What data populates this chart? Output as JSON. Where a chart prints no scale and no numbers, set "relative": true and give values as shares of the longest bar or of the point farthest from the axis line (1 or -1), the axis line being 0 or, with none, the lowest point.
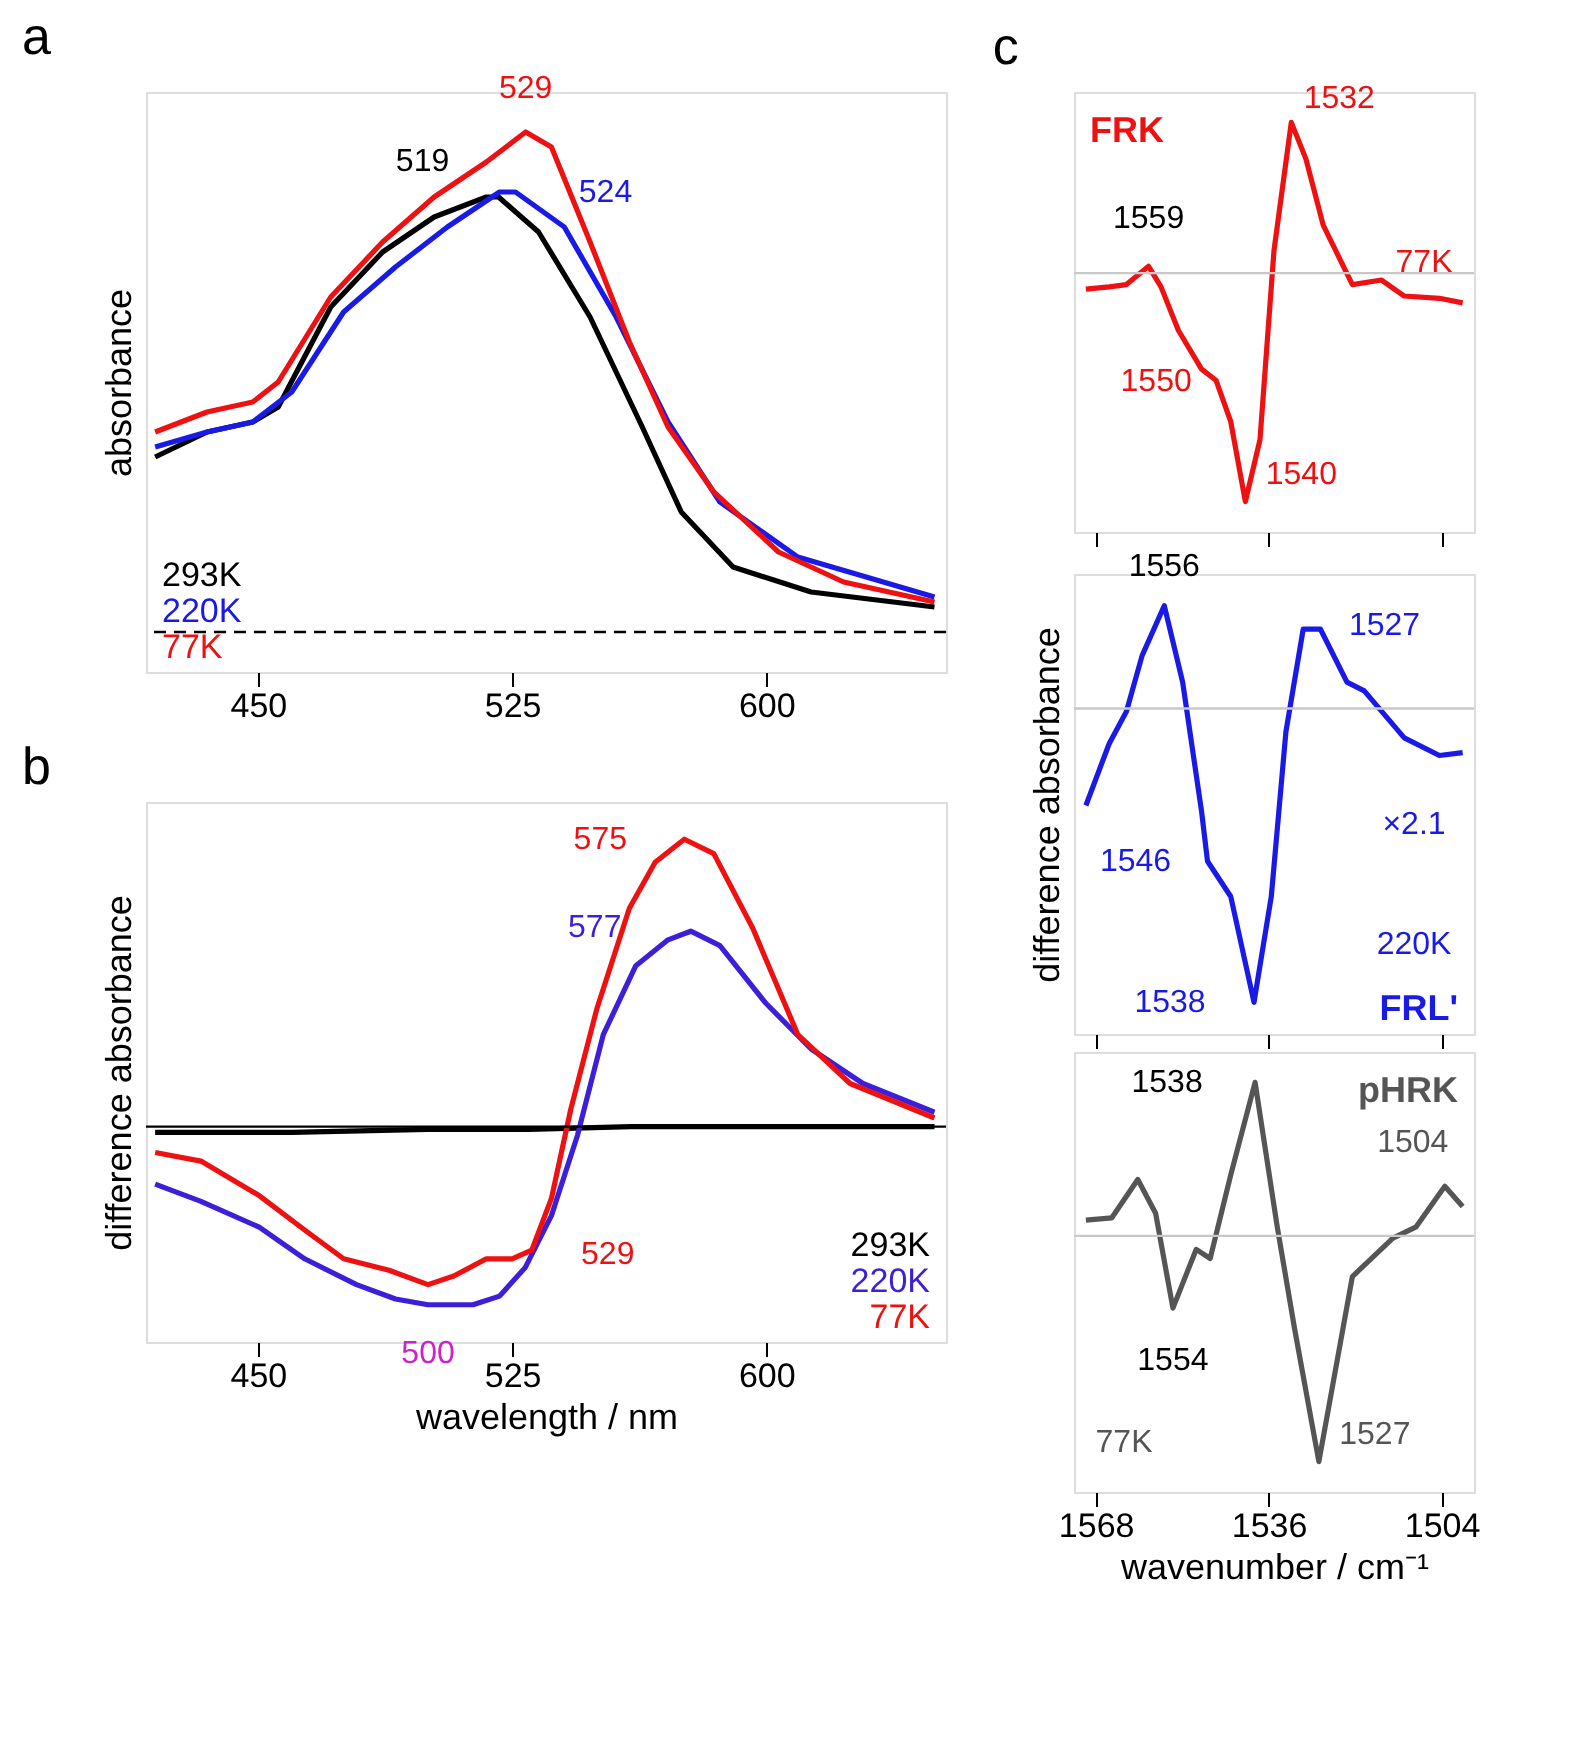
{
  "chart_data": [
    {
      "type": "line",
      "title": "a",
      "ylabel": "absorbance",
      "relative": true,
      "xlim": [
        417,
        653
      ],
      "xticks": [
        450,
        525,
        600
      ],
      "tick_labels": "x",
      "ref_lines": [
        {
          "axis": "y",
          "value": 0,
          "line_style": "dashed",
          "color": "#000000"
        }
      ],
      "series": [
        {
          "name": "293K",
          "color": "#000000",
          "x": [
            419.7,
            435,
            448.5,
            456,
            471.5,
            486.8,
            502,
            517.4,
            521,
            532.8,
            548,
            563.4,
            574.9,
            590.2,
            613.2,
            649.6
          ],
          "values": [
            0.35,
            0.4,
            0.42,
            0.45,
            0.65,
            0.76,
            0.83,
            0.87,
            0.87,
            0.8,
            0.63,
            0.41,
            0.24,
            0.13,
            0.08,
            0.05
          ]
        },
        {
          "name": "220K",
          "color": "#1a1ae6",
          "x": [
            419.7,
            435,
            448.5,
            460,
            475.3,
            490.6,
            505.9,
            521.3,
            526,
            540.4,
            555.7,
            571,
            586.3,
            609.3,
            649.6
          ],
          "values": [
            0.37,
            0.4,
            0.42,
            0.48,
            0.64,
            0.73,
            0.81,
            0.88,
            0.88,
            0.81,
            0.63,
            0.42,
            0.26,
            0.15,
            0.07
          ]
        },
        {
          "name": "77K",
          "color": "#ee1111",
          "x": [
            419.7,
            435,
            448.5,
            456,
            471.5,
            486.8,
            502,
            517.4,
            529,
            536.6,
            548,
            559.6,
            571,
            584.5,
            603.6,
            622.8,
            649.6
          ],
          "values": [
            0.4,
            0.44,
            0.46,
            0.5,
            0.67,
            0.78,
            0.87,
            0.94,
            1.0,
            0.97,
            0.78,
            0.58,
            0.41,
            0.28,
            0.16,
            0.1,
            0.06
          ]
        }
      ],
      "annotations": [
        {
          "text": "529",
          "x": 529,
          "y": 1.0
        },
        {
          "text": "519",
          "x": 521,
          "y": 0.87
        },
        {
          "text": "524",
          "x": 526,
          "y": 0.88
        }
      ]
    },
    {
      "type": "line",
      "title": "b",
      "ylabel": "difference absorbance",
      "xlabel": "wavelength / nm",
      "relative": true,
      "xlim": [
        417,
        653
      ],
      "xticks": [
        450,
        525,
        600
      ],
      "tick_labels": "x",
      "series": [
        {
          "name": "293K",
          "color": "#000000",
          "x": [
            419.7,
            460,
            500,
            530,
            560,
            600,
            649.6
          ],
          "values": [
            -0.02,
            -0.02,
            -0.01,
            -0.01,
            0,
            0,
            0
          ]
        },
        {
          "name": "220K",
          "color": "#3b1fd9",
          "x": [
            419.7,
            433.2,
            450.4,
            463.8,
            479.1,
            490.6,
            500.2,
            513.5,
            521.3,
            528.9,
            536.6,
            544.3,
            551.9,
            561.5,
            571,
            577.7,
            586.3,
            599.8,
            613.2,
            628.5,
            649.6
          ],
          "values": [
            -0.2,
            -0.26,
            -0.35,
            -0.46,
            -0.55,
            -0.6,
            -0.62,
            -0.62,
            -0.59,
            -0.49,
            -0.31,
            -0.03,
            0.32,
            0.56,
            0.65,
            0.68,
            0.63,
            0.43,
            0.27,
            0.15,
            0.05
          ]
        },
        {
          "name": "77K",
          "color": "#ee1111",
          "x": [
            419.7,
            433.2,
            450.4,
            463.8,
            475.3,
            488.7,
            500.2,
            507.8,
            517.4,
            525,
            530.8,
            536.6,
            542.3,
            550,
            559.6,
            567.2,
            575.8,
            584.5,
            596,
            609.3,
            624.7,
            649.6
          ],
          "values": [
            -0.09,
            -0.12,
            -0.24,
            -0.36,
            -0.46,
            -0.5,
            -0.55,
            -0.52,
            -0.46,
            -0.46,
            -0.43,
            -0.25,
            0.06,
            0.41,
            0.76,
            0.92,
            1.0,
            0.95,
            0.69,
            0.32,
            0.15,
            0.03
          ]
        }
      ],
      "ref_lines": [
        {
          "axis": "y",
          "value": 0,
          "color": "#000000"
        }
      ],
      "annotations": [
        {
          "text": "575",
          "x": 575.8,
          "y": 1.0
        },
        {
          "text": "577",
          "x": 577.7,
          "y": 0.68
        },
        {
          "text": "529",
          "x": 530.8,
          "y": -0.43
        },
        {
          "text": "500",
          "x": 500.2,
          "y": -0.62
        }
      ]
    },
    {
      "type": "line",
      "title": "c",
      "relative": true,
      "xlim": [
        1572,
        1498
      ],
      "xticks": [
        1568,
        1536,
        1504
      ],
      "tick_labels": false,
      "series": [
        {
          "name": "FRK",
          "color": "#ee1111",
          "x": [
            1569.8,
            1565.5,
            1562.3,
            1558.2,
            1555.9,
            1552.7,
            1548.4,
            1545.7,
            1543.0,
            1540.3,
            1537.6,
            1535.0,
            1531.8,
            1529.1,
            1525.9,
            1520.5,
            1515.1,
            1510.9,
            1504.4,
            1500.1
          ],
          "values": [
            -0.07,
            -0.06,
            -0.05,
            0.03,
            -0.06,
            -0.25,
            -0.42,
            -0.47,
            -0.65,
            -1.0,
            -0.73,
            0.1,
            0.66,
            0.5,
            0.21,
            -0.05,
            -0.03,
            -0.1,
            -0.11,
            -0.13
          ]
        }
      ],
      "ref_lines": [
        {
          "axis": "y",
          "value": 0,
          "color": "#c8c8c8"
        }
      ],
      "annotations": [
        {
          "text": "1532",
          "x": 1531.8,
          "y": 0.66
        },
        {
          "text": "1559",
          "x": 1558.2,
          "y": 0.03
        },
        "77K",
        {
          "text": "1550",
          "x": 1545.7,
          "y": -0.47
        },
        {
          "text": "1540",
          "x": 1540.3,
          "y": -1.0
        }
      ]
    },
    {
      "type": "line",
      "ylabel": "difference absorbance",
      "relative": true,
      "xlim": [
        1572,
        1498
      ],
      "xticks": [
        1568,
        1536,
        1504
      ],
      "tick_labels": false,
      "series": [
        {
          "name": "FRL'",
          "color": "#1a1ae6",
          "x": [
            1569.8,
            1565.5,
            1562.3,
            1559.4,
            1555.3,
            1551.9,
            1548.4,
            1547.3,
            1543.0,
            1538.7,
            1535.5,
            1532.8,
            1529.6,
            1526.4,
            1521.5,
            1518.3,
            1510.9,
            1504.4,
            1500.1
          ],
          "values": [
            -0.33,
            -0.12,
            -0.01,
            0.18,
            0.35,
            0.09,
            -0.35,
            -0.52,
            -0.64,
            -1.0,
            -0.64,
            -0.08,
            0.27,
            0.27,
            0.09,
            0.06,
            -0.1,
            -0.16,
            -0.15
          ]
        }
      ],
      "ref_lines": [
        {
          "axis": "y",
          "value": 0,
          "color": "#c8c8c8"
        }
      ],
      "annotations": [
        {
          "text": "1556",
          "x": 1555.3,
          "y": 0.35
        },
        {
          "text": "1527",
          "x": 1526.4,
          "y": 0.27
        },
        "×2.1",
        {
          "text": "1546",
          "x": 1547.3,
          "y": -0.52
        },
        {
          "text": "1538",
          "x": 1538.7,
          "y": -1.0
        },
        "220K"
      ]
    },
    {
      "type": "line",
      "xlabel": "wavenumber / cm⁻¹",
      "relative": true,
      "xlim": [
        1572,
        1498
      ],
      "xticks": [
        1568,
        1536,
        1504
      ],
      "tick_labels": "x",
      "series": [
        {
          "name": "pHRK",
          "color": "#555555",
          "x": [
            1569.8,
            1565.0,
            1560.2,
            1556.9,
            1553.7,
            1549.4,
            1546.8,
            1543.0,
            1538.5,
            1534.4,
            1531.2,
            1526.7,
            1520.5,
            1513.0,
            1508.7,
            1503.4,
            1500.1
          ],
          "values": [
            0.07,
            0.08,
            0.25,
            0.1,
            -0.32,
            -0.06,
            -0.1,
            0.27,
            0.68,
            0.04,
            -0.41,
            -1.0,
            -0.18,
            -0.01,
            0.04,
            0.22,
            0.13
          ]
        }
      ],
      "ref_lines": [
        {
          "axis": "y",
          "value": 0,
          "color": "#c8c8c8"
        }
      ],
      "annotations": [
        {
          "text": "1538",
          "x": 1538.5,
          "y": 0.68
        },
        {
          "text": "1504",
          "x": 1503.4,
          "y": 0.22
        },
        {
          "text": "1554",
          "x": 1553.7,
          "y": -0.32
        },
        {
          "text": "1527",
          "x": 1526.7,
          "y": -1.0
        },
        "77K"
      ]
    }
  ]
}
